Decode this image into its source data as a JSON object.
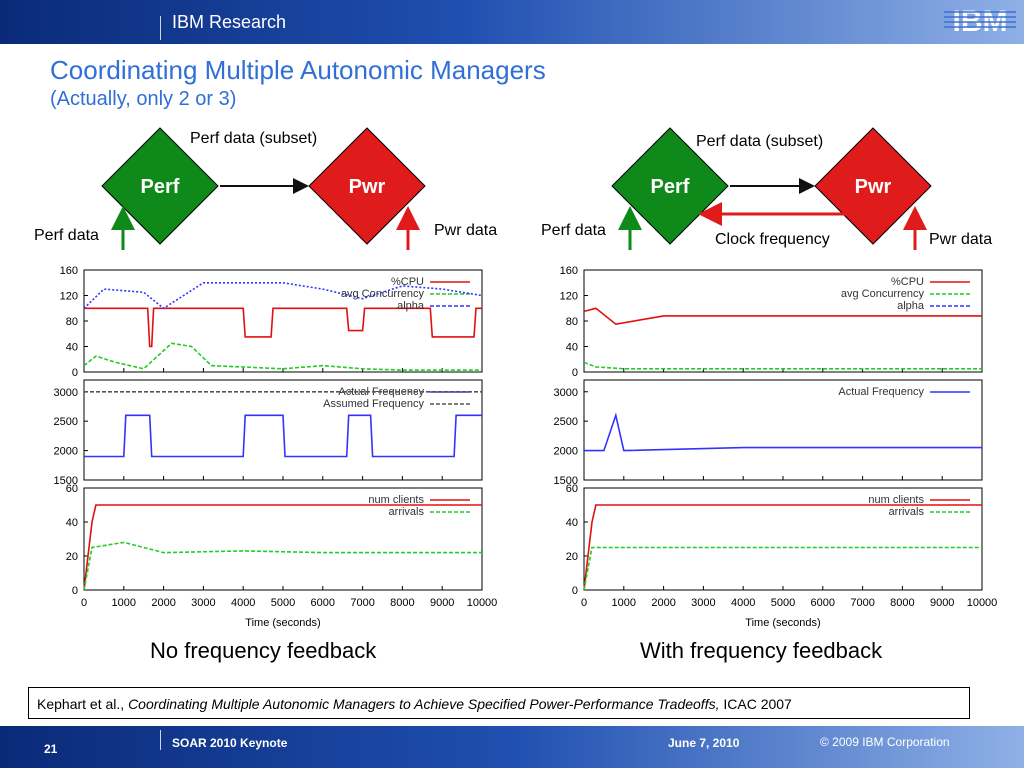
{
  "header": {
    "brand": "IBM Research",
    "logo": "IBM"
  },
  "slide": {
    "title": "Coordinating Multiple Autonomic Managers",
    "subtitle": "(Actually, only 2 or 3)"
  },
  "diagram_left": {
    "perf": "Perf",
    "pwr": "Pwr",
    "top_arrow": "Perf data (subset)",
    "perf_input": "Perf data",
    "pwr_input": "Pwr data"
  },
  "diagram_right": {
    "perf": "Perf",
    "pwr": "Pwr",
    "top_arrow": "Perf data (subset)",
    "perf_input": "Perf data",
    "pwr_input": "Pwr data",
    "feedback": "Clock frequency"
  },
  "colors": {
    "diamond_perf": "#0f8a1a",
    "diamond_pwr": "#e01b1b",
    "title": "#2f6fd6"
  },
  "chart_data": [
    {
      "type": "line",
      "caption": "No frequency feedback",
      "xlabel": "Time (seconds)",
      "x_ticks": [
        "0",
        "1000",
        "2000",
        "3000",
        "4000",
        "5000",
        "6000",
        "7000",
        "8000",
        "9000",
        "10000"
      ],
      "xlim": [
        0,
        10000
      ],
      "panels": [
        {
          "ylim": [
            0,
            160
          ],
          "y_ticks": [
            "0",
            "40",
            "80",
            "120",
            "160"
          ],
          "series": [
            {
              "name": "%CPU",
              "color": "#e01010",
              "points": [
                [
                  0,
                  100
                ],
                [
                  1000,
                  100
                ],
                [
                  1600,
                  100
                ],
                [
                  1650,
                  40
                ],
                [
                  1700,
                  40
                ],
                [
                  1750,
                  100
                ],
                [
                  3000,
                  100
                ],
                [
                  4000,
                  100
                ],
                [
                  4050,
                  55
                ],
                [
                  4700,
                  55
                ],
                [
                  4750,
                  100
                ],
                [
                  6000,
                  100
                ],
                [
                  6600,
                  100
                ],
                [
                  6650,
                  65
                ],
                [
                  7000,
                  65
                ],
                [
                  7050,
                  100
                ],
                [
                  8700,
                  100
                ],
                [
                  8750,
                  55
                ],
                [
                  9800,
                  55
                ],
                [
                  9850,
                  100
                ],
                [
                  10000,
                  100
                ]
              ]
            },
            {
              "name": "avg Concurrency",
              "color": "#22cc22",
              "points": [
                [
                  0,
                  10
                ],
                [
                  300,
                  25
                ],
                [
                  800,
                  15
                ],
                [
                  1500,
                  5
                ],
                [
                  2200,
                  45
                ],
                [
                  2700,
                  40
                ],
                [
                  3200,
                  10
                ],
                [
                  5000,
                  5
                ],
                [
                  6000,
                  10
                ],
                [
                  7000,
                  5
                ],
                [
                  8000,
                  3
                ],
                [
                  10000,
                  3
                ]
              ]
            },
            {
              "name": "alpha",
              "color": "#3333ff",
              "points": [
                [
                  0,
                  100
                ],
                [
                  500,
                  130
                ],
                [
                  1500,
                  125
                ],
                [
                  2000,
                  100
                ],
                [
                  3000,
                  140
                ],
                [
                  5000,
                  140
                ],
                [
                  6000,
                  130
                ],
                [
                  7000,
                  115
                ],
                [
                  8000,
                  135
                ],
                [
                  9000,
                  130
                ],
                [
                  10000,
                  120
                ]
              ]
            }
          ]
        },
        {
          "ylim": [
            1500,
            3200
          ],
          "y_ticks": [
            "1500",
            "2000",
            "2500",
            "3000"
          ],
          "series": [
            {
              "name": "Actual Frequency",
              "color": "#3333ff",
              "points": [
                [
                  0,
                  1900
                ],
                [
                  1000,
                  1900
                ],
                [
                  1050,
                  2600
                ],
                [
                  1650,
                  2600
                ],
                [
                  1700,
                  1900
                ],
                [
                  4000,
                  1900
                ],
                [
                  4050,
                  2600
                ],
                [
                  5000,
                  2600
                ],
                [
                  5050,
                  1900
                ],
                [
                  6600,
                  1900
                ],
                [
                  6650,
                  2600
                ],
                [
                  7200,
                  2600
                ],
                [
                  7250,
                  1900
                ],
                [
                  9300,
                  1900
                ],
                [
                  9350,
                  2600
                ],
                [
                  10000,
                  2600
                ]
              ]
            },
            {
              "name": "Assumed Frequency",
              "color": "#555555",
              "points": [
                [
                  0,
                  3000
                ],
                [
                  10000,
                  3000
                ]
              ]
            }
          ]
        },
        {
          "ylim": [
            0,
            60
          ],
          "y_ticks": [
            "0",
            "20",
            "40",
            "60"
          ],
          "series": [
            {
              "name": "num clients",
              "color": "#e01010",
              "points": [
                [
                  0,
                  0
                ],
                [
                  100,
                  20
                ],
                [
                  200,
                  40
                ],
                [
                  300,
                  50
                ],
                [
                  10000,
                  50
                ]
              ]
            },
            {
              "name": "arrivals",
              "color": "#22cc22",
              "points": [
                [
                  0,
                  0
                ],
                [
                  200,
                  25
                ],
                [
                  1000,
                  28
                ],
                [
                  2000,
                  22
                ],
                [
                  4000,
                  23
                ],
                [
                  6000,
                  22
                ],
                [
                  8000,
                  22
                ],
                [
                  10000,
                  22
                ]
              ]
            }
          ]
        }
      ]
    },
    {
      "type": "line",
      "caption": "With frequency feedback",
      "xlabel": "Time (seconds)",
      "x_ticks": [
        "0",
        "1000",
        "2000",
        "3000",
        "4000",
        "5000",
        "6000",
        "7000",
        "8000",
        "9000",
        "10000"
      ],
      "xlim": [
        0,
        10000
      ],
      "panels": [
        {
          "ylim": [
            0,
            160
          ],
          "y_ticks": [
            "0",
            "40",
            "80",
            "120",
            "160"
          ],
          "series": [
            {
              "name": "%CPU",
              "color": "#e01010",
              "points": [
                [
                  0,
                  95
                ],
                [
                  300,
                  100
                ],
                [
                  800,
                  75
                ],
                [
                  2000,
                  88
                ],
                [
                  4000,
                  88
                ],
                [
                  6000,
                  88
                ],
                [
                  8000,
                  88
                ],
                [
                  10000,
                  88
                ]
              ]
            },
            {
              "name": "avg Concurrency",
              "color": "#22cc22",
              "points": [
                [
                  0,
                  15
                ],
                [
                  300,
                  8
                ],
                [
                  1000,
                  5
                ],
                [
                  10000,
                  5
                ]
              ]
            },
            {
              "name": "alpha",
              "color": "#3333ff",
              "points": []
            }
          ]
        },
        {
          "ylim": [
            1500,
            3200
          ],
          "y_ticks": [
            "1500",
            "2000",
            "2500",
            "3000"
          ],
          "series": [
            {
              "name": "Actual Frequency",
              "color": "#3333ff",
              "points": [
                [
                  0,
                  2000
                ],
                [
                  500,
                  2000
                ],
                [
                  800,
                  2600
                ],
                [
                  1000,
                  2000
                ],
                [
                  4000,
                  2050
                ],
                [
                  7000,
                  2050
                ],
                [
                  10000,
                  2050
                ]
              ]
            }
          ]
        },
        {
          "ylim": [
            0,
            60
          ],
          "y_ticks": [
            "0",
            "20",
            "40",
            "60"
          ],
          "series": [
            {
              "name": "num clients",
              "color": "#e01010",
              "points": [
                [
                  0,
                  0
                ],
                [
                  100,
                  20
                ],
                [
                  200,
                  40
                ],
                [
                  300,
                  50
                ],
                [
                  10000,
                  50
                ]
              ]
            },
            {
              "name": "arrivals",
              "color": "#22cc22",
              "points": [
                [
                  0,
                  0
                ],
                [
                  200,
                  25
                ],
                [
                  10000,
                  25
                ]
              ]
            }
          ]
        }
      ]
    }
  ],
  "citation": {
    "authors": "Kephart et al.,",
    "title": "Coordinating Multiple Autonomic Managers to Achieve Specified Power-Performance Tradeoffs,",
    "venue": "ICAC 2007"
  },
  "footer": {
    "page": "21",
    "event": "SOAR 2010 Keynote",
    "date": "June 7, 2010",
    "copyright": "© 2009 IBM Corporation"
  }
}
